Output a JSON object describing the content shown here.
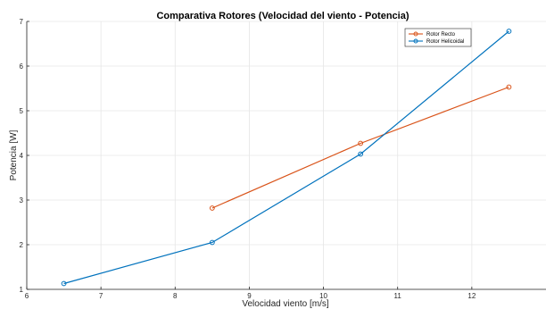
{
  "chart_data": {
    "type": "line",
    "title": "Comparativa Rotores (Velocidad del viento - Potencia)",
    "xlabel": "Velocidad viento [m/s]",
    "ylabel": "Potencia [W]",
    "xlim": [
      6,
      13
    ],
    "ylim": [
      1,
      7
    ],
    "xticks": [
      "6",
      "7",
      "8",
      "9",
      "10",
      "11",
      "12"
    ],
    "yticks": [
      "1",
      "2",
      "3",
      "4",
      "5",
      "6",
      "7"
    ],
    "grid": true,
    "legend_position": "top-right",
    "series": [
      {
        "name": "Rotor Recto",
        "color": "#D95319",
        "marker": "circle",
        "points": [
          [
            8.5,
            2.82
          ],
          [
            10.5,
            4.27
          ],
          [
            12.5,
            5.53
          ]
        ]
      },
      {
        "name": "Rotor Helicoidal",
        "color": "#0072BD",
        "marker": "circle",
        "points": [
          [
            6.5,
            1.13
          ],
          [
            8.5,
            2.05
          ],
          [
            10.5,
            4.03
          ],
          [
            12.5,
            6.78
          ]
        ]
      }
    ]
  }
}
